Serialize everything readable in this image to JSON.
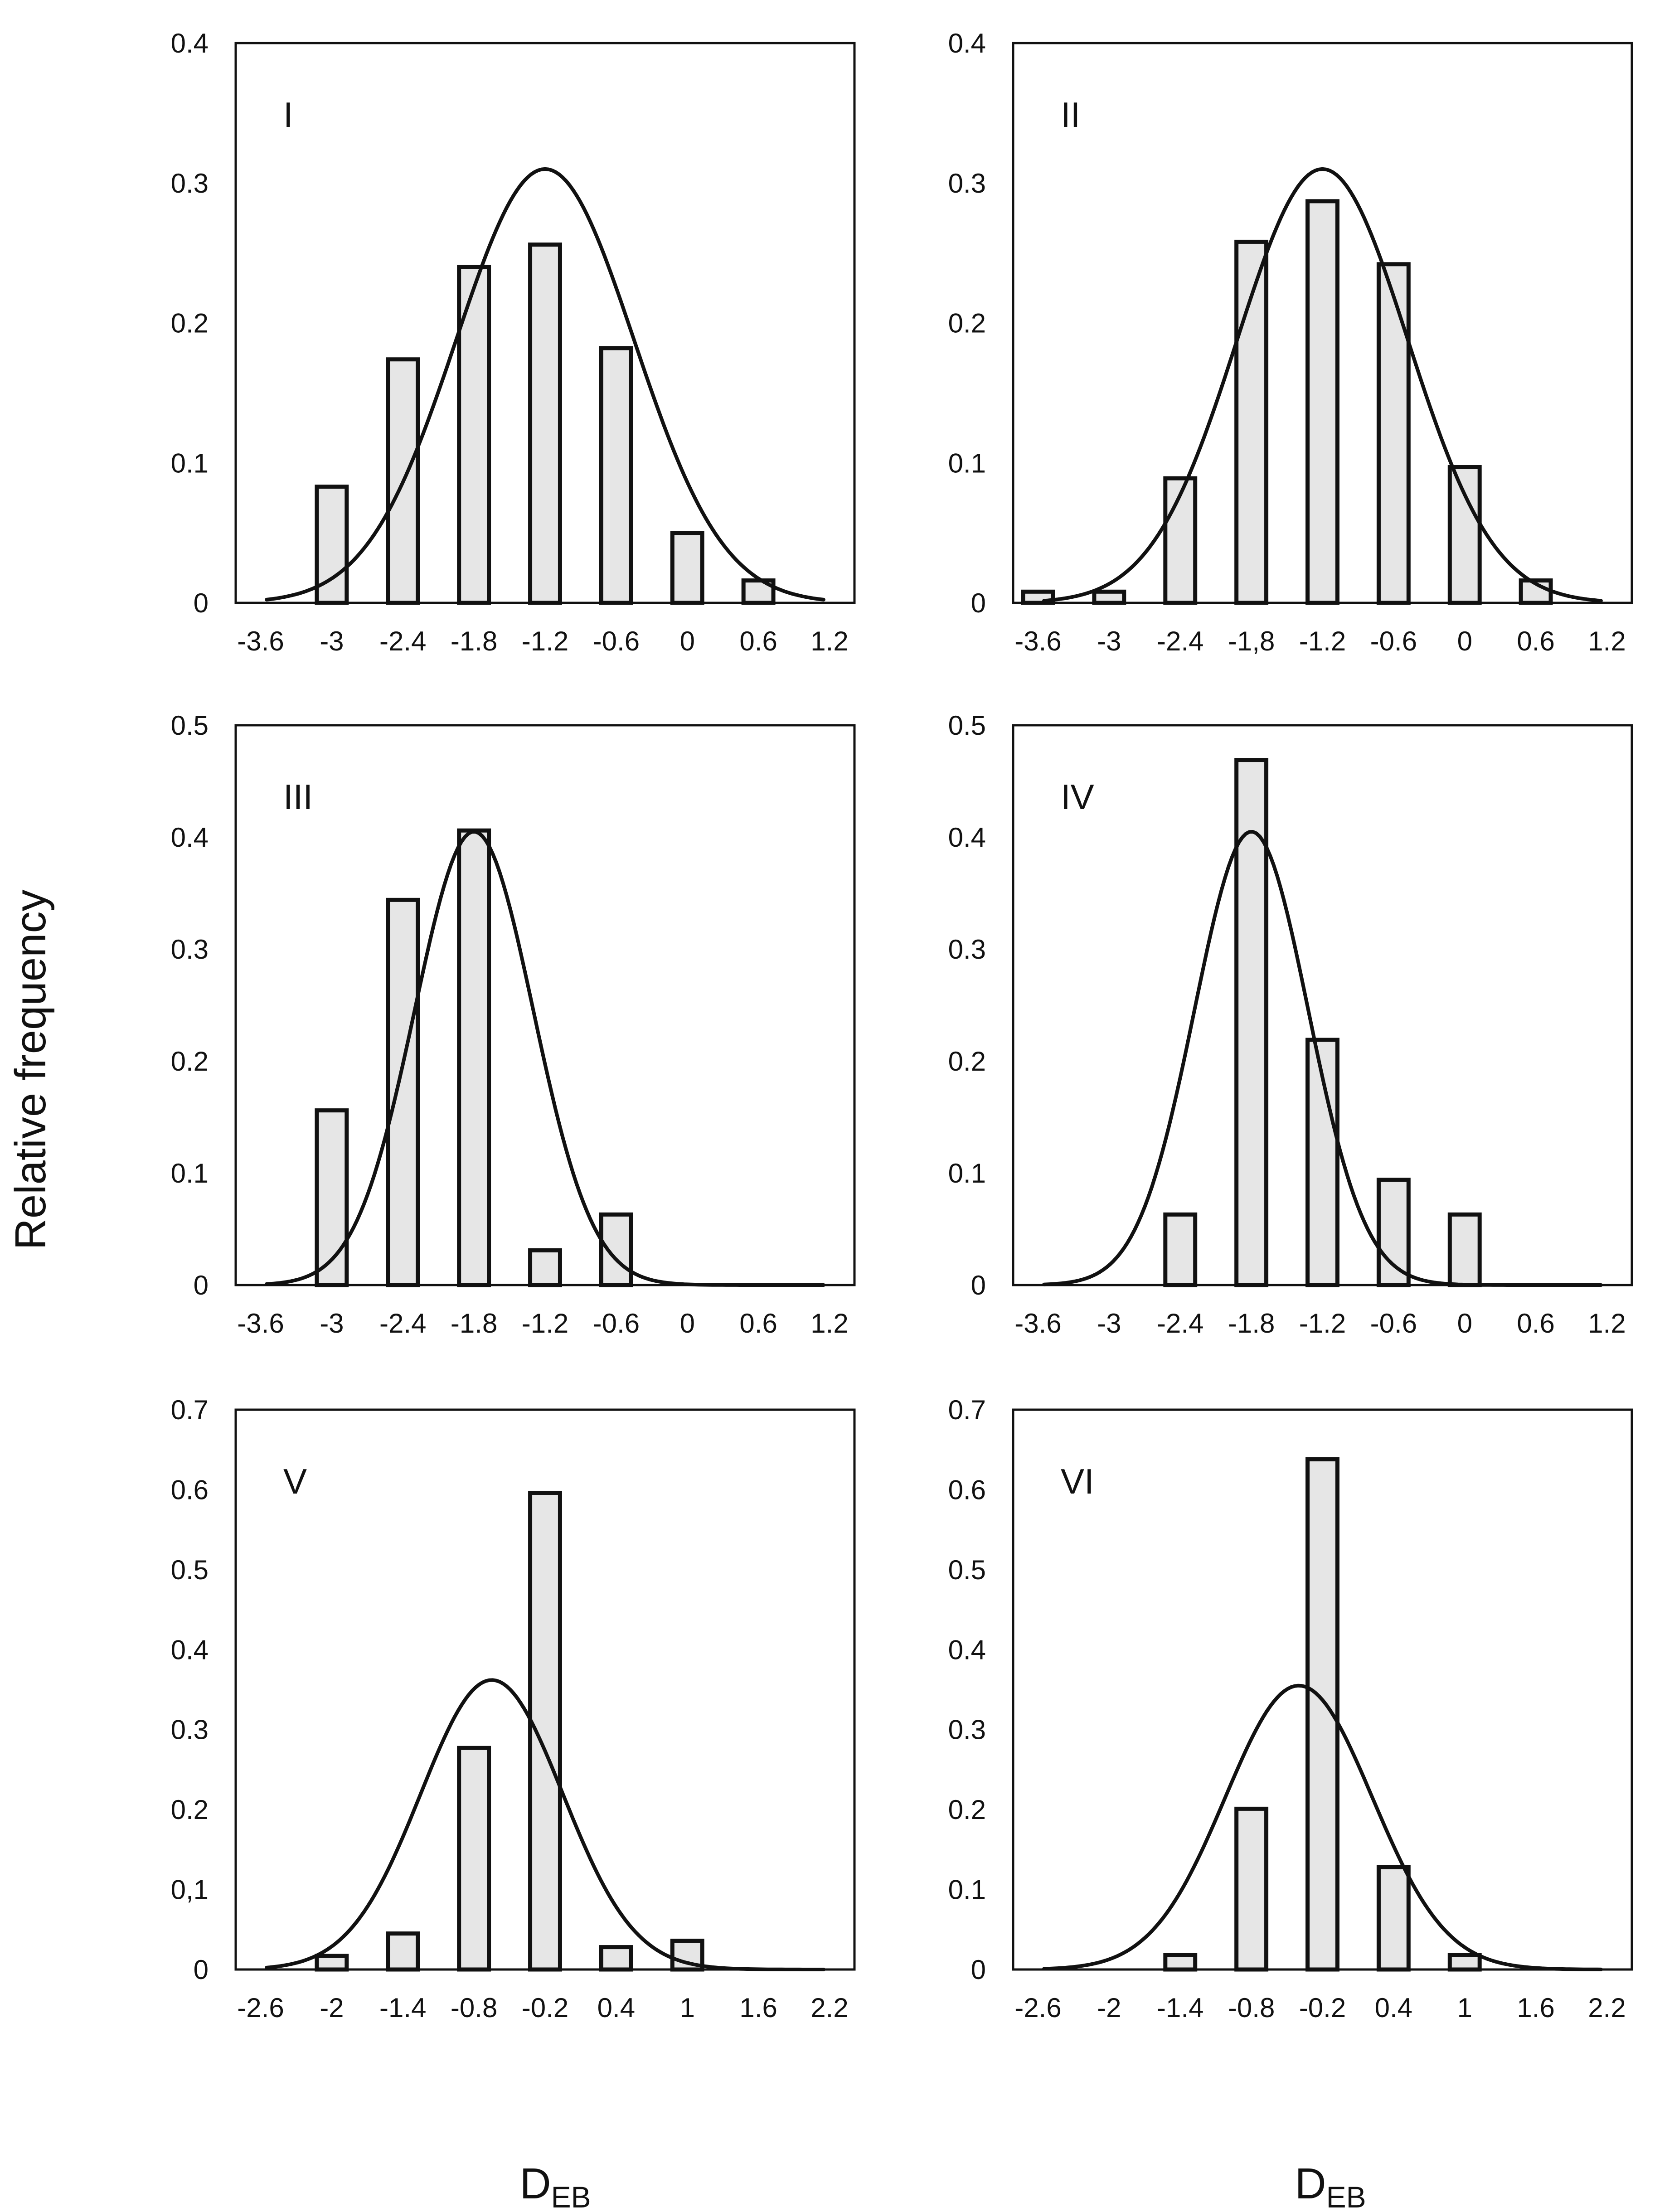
{
  "figure": {
    "y_axis_label": "Relative frequency",
    "x_axis_label_main": "D",
    "x_axis_label_sub": "EB"
  },
  "colors": {
    "bar_fill": "#e6e6e6",
    "stroke": "#111111"
  },
  "chart_data": [
    {
      "type": "bar",
      "panel": "I",
      "xlim": [
        -3.6,
        1.2
      ],
      "ylim": [
        0,
        0.4
      ],
      "x_ticks": [
        "-3.6",
        "-3",
        "-2.4",
        "-1.8",
        "-1.2",
        "-0.6",
        "0",
        "0.6",
        "1.2"
      ],
      "y_ticks": [
        "0",
        "0.1",
        "0.2",
        "0.3",
        "0.4"
      ],
      "bars": {
        "x": [
          -3.0,
          -2.4,
          -1.8,
          -1.2,
          -0.6,
          0.0,
          0.6
        ],
        "values": [
          0.083,
          0.174,
          0.24,
          0.256,
          0.182,
          0.05,
          0.016
        ]
      },
      "fit_curve": {
        "mean": -1.2,
        "peak": 0.31,
        "sd": 0.75,
        "x_range": [
          -3.55,
          1.15
        ]
      }
    },
    {
      "type": "bar",
      "panel": "II",
      "xlim": [
        -3.6,
        1.2
      ],
      "ylim": [
        0,
        0.4
      ],
      "x_ticks": [
        "-3.6",
        "-3",
        "-2.4",
        "-1,8",
        "-1.2",
        "-0.6",
        "0",
        "0.6",
        "1.2"
      ],
      "y_ticks": [
        "0",
        "0.1",
        "0.2",
        "0.3",
        "0.4"
      ],
      "bars": {
        "x": [
          -3.6,
          -3.0,
          -2.4,
          -1.8,
          -1.2,
          -0.6,
          0.0,
          0.6
        ],
        "values": [
          0.008,
          0.008,
          0.089,
          0.258,
          0.287,
          0.242,
          0.097,
          0.016
        ]
      },
      "fit_curve": {
        "mean": -1.2,
        "peak": 0.31,
        "sd": 0.72,
        "x_range": [
          -3.55,
          1.15
        ]
      }
    },
    {
      "type": "bar",
      "panel": "III",
      "xlim": [
        -3.6,
        1.2
      ],
      "ylim": [
        0,
        0.5
      ],
      "x_ticks": [
        "-3.6",
        "-3",
        "-2.4",
        "-1.8",
        "-1.2",
        "-0.6",
        "0",
        "0.6",
        "1.2"
      ],
      "y_ticks": [
        "0",
        "0.1",
        "0.2",
        "0.3",
        "0.4",
        "0.5"
      ],
      "bars": {
        "x": [
          -3.0,
          -2.4,
          -1.8,
          -1.2,
          -0.6
        ],
        "values": [
          0.156,
          0.344,
          0.406,
          0.031,
          0.063
        ]
      },
      "fit_curve": {
        "mean": -1.8,
        "peak": 0.405,
        "sd": 0.5,
        "x_range": [
          -3.55,
          1.15
        ]
      }
    },
    {
      "type": "bar",
      "panel": "IV",
      "xlim": [
        -3.6,
        1.2
      ],
      "ylim": [
        0,
        0.5
      ],
      "x_ticks": [
        "-3.6",
        "-3",
        "-2.4",
        "-1.8",
        "-1.2",
        "-0.6",
        "0",
        "0.6",
        "1.2"
      ],
      "y_ticks": [
        "0",
        "0.1",
        "0.2",
        "0.3",
        "0.4",
        "0.5"
      ],
      "bars": {
        "x": [
          -2.4,
          -1.8,
          -1.2,
          -0.6,
          0.0
        ],
        "values": [
          0.063,
          0.469,
          0.219,
          0.094,
          0.063
        ]
      },
      "fit_curve": {
        "mean": -1.8,
        "peak": 0.405,
        "sd": 0.48,
        "x_range": [
          -3.55,
          1.15
        ]
      }
    },
    {
      "type": "bar",
      "panel": "V",
      "xlim": [
        -2.6,
        2.2
      ],
      "ylim": [
        0,
        0.7
      ],
      "x_ticks": [
        "-2.6",
        "-2",
        "-1.4",
        "-0.8",
        "-0.2",
        "0.4",
        "1",
        "1.6",
        "2.2"
      ],
      "y_ticks": [
        "0",
        "0.1",
        "0.2",
        "0.3",
        "0.4",
        "0.5",
        "0.6",
        "0.7"
      ],
      "y_tick_text": [
        "0",
        "0,1",
        "0.2",
        "0.3",
        "0.4",
        "0.5",
        "0.6",
        "0.7"
      ],
      "bars": {
        "x": [
          -2.0,
          -1.4,
          -0.8,
          -0.2,
          0.4,
          1.0
        ],
        "values": [
          0.017,
          0.045,
          0.277,
          0.596,
          0.028,
          0.036
        ]
      },
      "fit_curve": {
        "mean": -0.65,
        "peak": 0.362,
        "sd": 0.6,
        "x_range": [
          -2.55,
          2.15
        ]
      }
    },
    {
      "type": "bar",
      "panel": "VI",
      "xlim": [
        -2.6,
        2.2
      ],
      "ylim": [
        0,
        0.7
      ],
      "x_ticks": [
        "-2.6",
        "-2",
        "-1.4",
        "-0.8",
        "-0.2",
        "0.4",
        "1",
        "1.6",
        "2.2"
      ],
      "y_ticks": [
        "0",
        "0.1",
        "0.2",
        "0.3",
        "0.4",
        "0.5",
        "0.6",
        "0.7"
      ],
      "y_tick_text": [
        "0",
        "0.1",
        "0.2",
        "0.3",
        "0.4",
        "0.5",
        "0.6",
        "0.7"
      ],
      "bars": {
        "x": [
          -1.4,
          -0.8,
          -0.2,
          0.4,
          1.0
        ],
        "values": [
          0.018,
          0.201,
          0.638,
          0.128,
          0.018
        ]
      },
      "fit_curve": {
        "mean": -0.4,
        "peak": 0.355,
        "sd": 0.62,
        "x_range": [
          -2.55,
          2.15
        ]
      }
    }
  ]
}
